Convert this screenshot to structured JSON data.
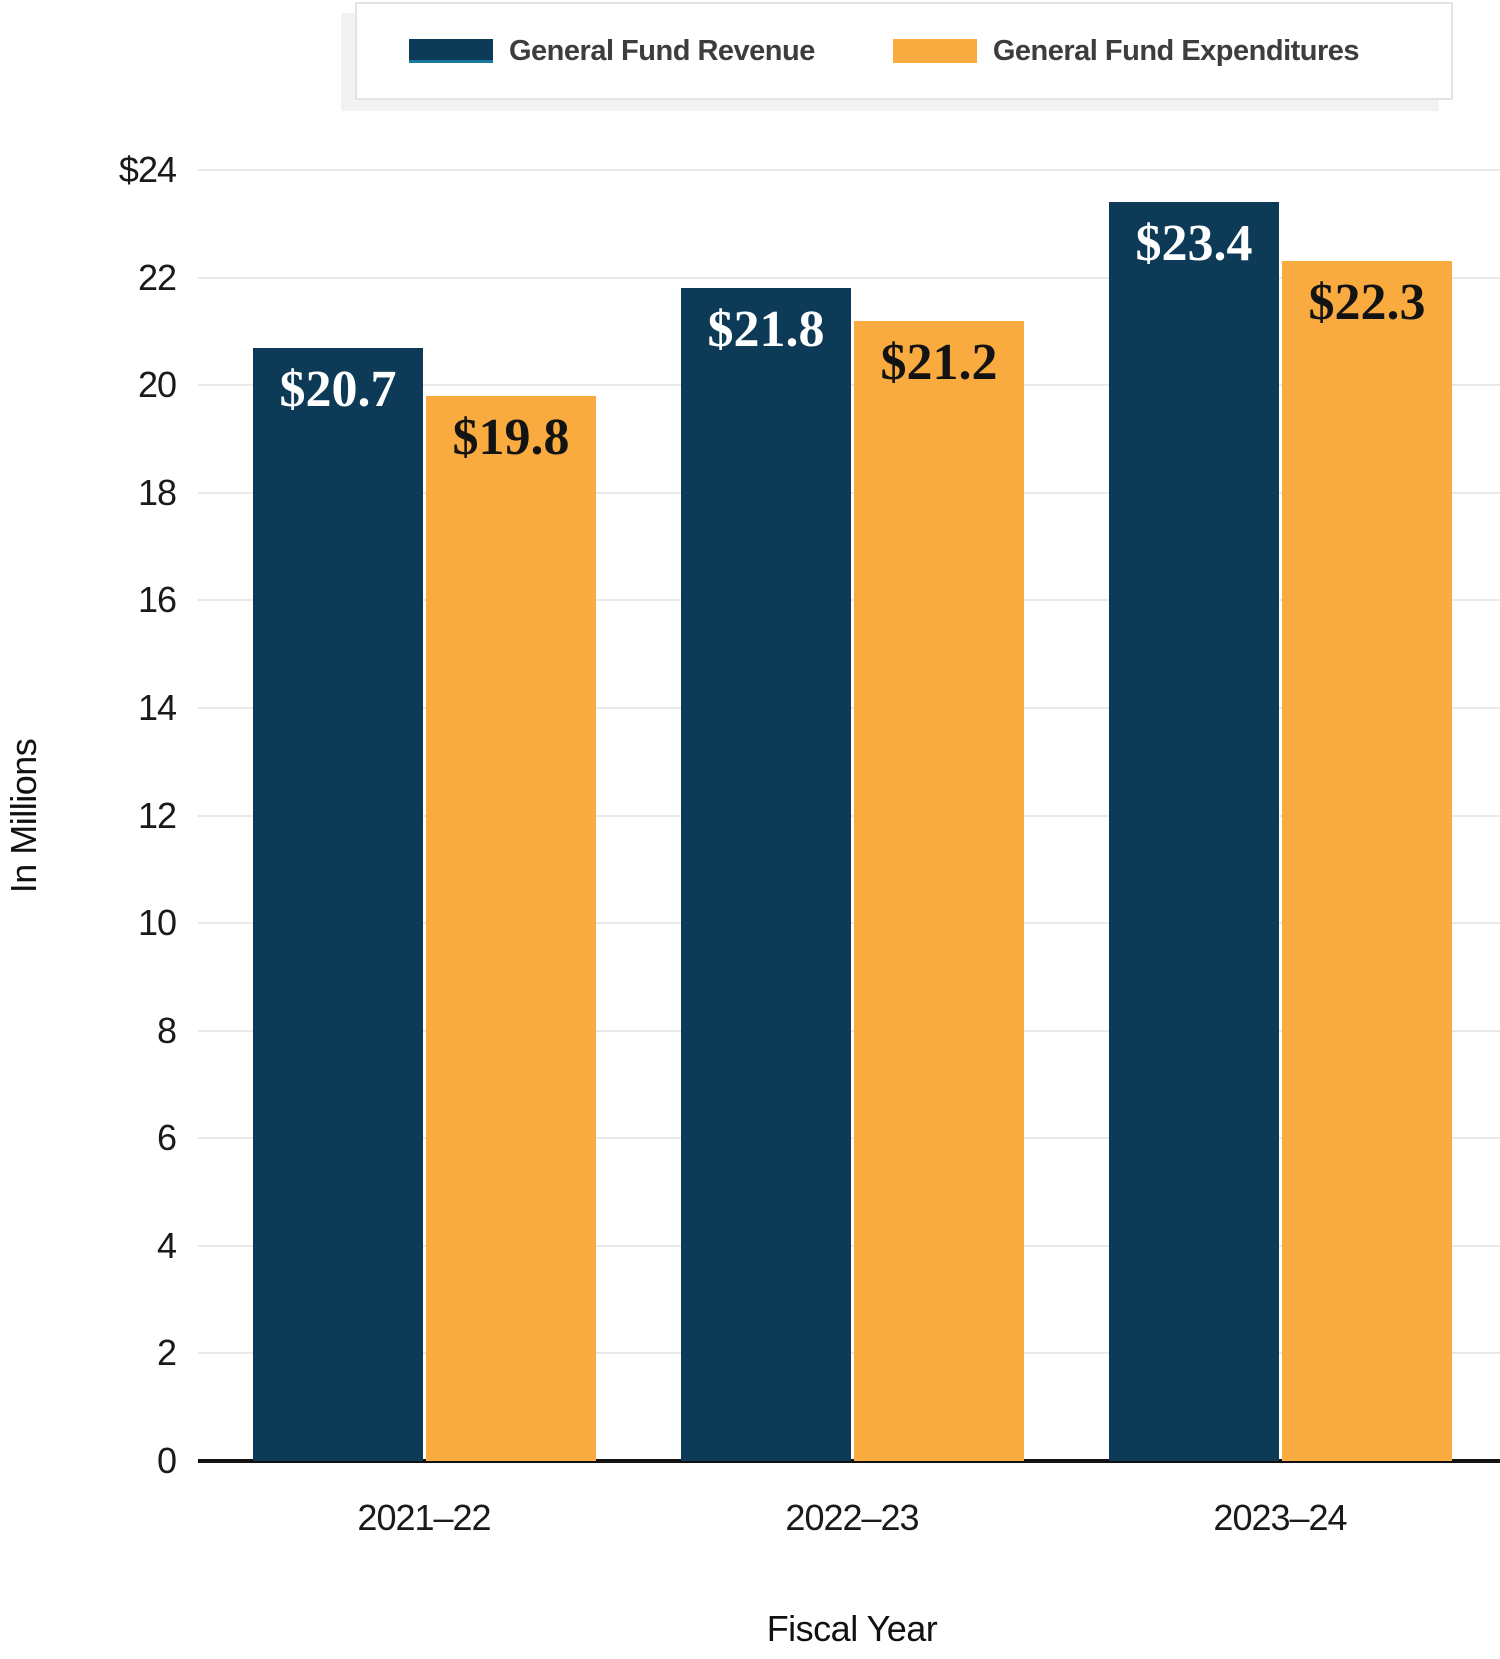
{
  "legend": {
    "items": [
      {
        "label": "General Fund Revenue",
        "swatch_color": "#0c3a57"
      },
      {
        "label": "General Fund Expenditures",
        "swatch_color": "#f9ab40"
      }
    ]
  },
  "chart_data": {
    "type": "bar",
    "title": "",
    "categories": [
      "2021–22",
      "2022–23",
      "2023–24"
    ],
    "series": [
      {
        "name": "General Fund Revenue",
        "color": "#0c3a57",
        "label_color": "#ffffff",
        "values": [
          20.7,
          21.8,
          23.4
        ],
        "data_labels": [
          "$20.7",
          "$21.8",
          "$23.4"
        ]
      },
      {
        "name": "General Fund Expenditures",
        "color": "#f9ab40",
        "label_color": "#131313",
        "values": [
          19.8,
          21.2,
          22.3
        ],
        "data_labels": [
          "$19.8",
          "$21.2",
          "$22.3"
        ]
      }
    ],
    "xlabel": "Fiscal Year",
    "ylabel": "In Millions",
    "ylim": [
      0,
      24
    ],
    "ytick_step": 2,
    "ytick_labels": [
      "$24",
      "22",
      "20",
      "18",
      "16",
      "14",
      "12",
      "10",
      "8",
      "6",
      "4",
      "2",
      "0"
    ],
    "grid": true,
    "legend_position": "top",
    "colors": {
      "gridline": "#e9e9e9",
      "axis_line": "#121212",
      "tick_text": "#1a1a1a",
      "legend_text": "#3d3d3f"
    }
  }
}
